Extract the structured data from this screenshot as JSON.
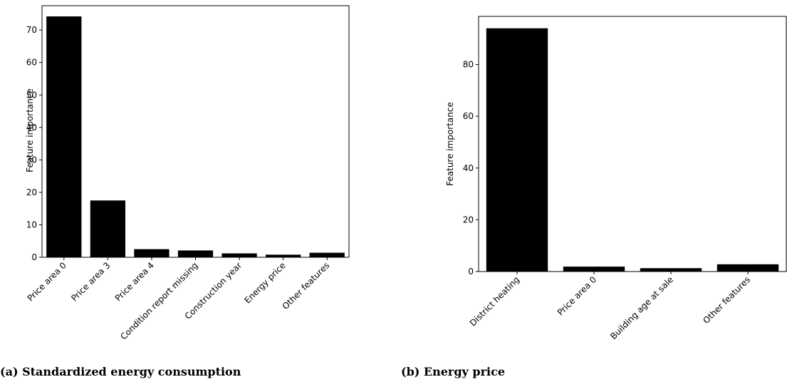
{
  "chart_data": [
    {
      "type": "bar",
      "caption": "(a) Standardized energy consumption",
      "ylabel": "Feature importance",
      "categories": [
        "Price area 0",
        "Price area 3",
        "Price area 4",
        "Condition report missing",
        "Construction year",
        "Energy price",
        "Other features"
      ],
      "values": [
        74.2,
        17.5,
        2.5,
        2.1,
        1.2,
        0.8,
        1.4
      ],
      "ylim": [
        0,
        77.5
      ],
      "yticks": [
        "0",
        "10",
        "20",
        "30",
        "40",
        "50",
        "60",
        "70"
      ],
      "grid": false,
      "bar_color": "#000000"
    },
    {
      "type": "bar",
      "caption": "(b) Energy price",
      "ylabel": "Feature importance",
      "categories": [
        "District heating",
        "Price area 0",
        "Building age at sale",
        "Other features"
      ],
      "values": [
        94.0,
        1.9,
        1.3,
        2.8
      ],
      "ylim": [
        0,
        98.6
      ],
      "yticks": [
        "0",
        "20",
        "40",
        "60",
        "80"
      ],
      "grid": false,
      "bar_color": "#000000"
    }
  ]
}
